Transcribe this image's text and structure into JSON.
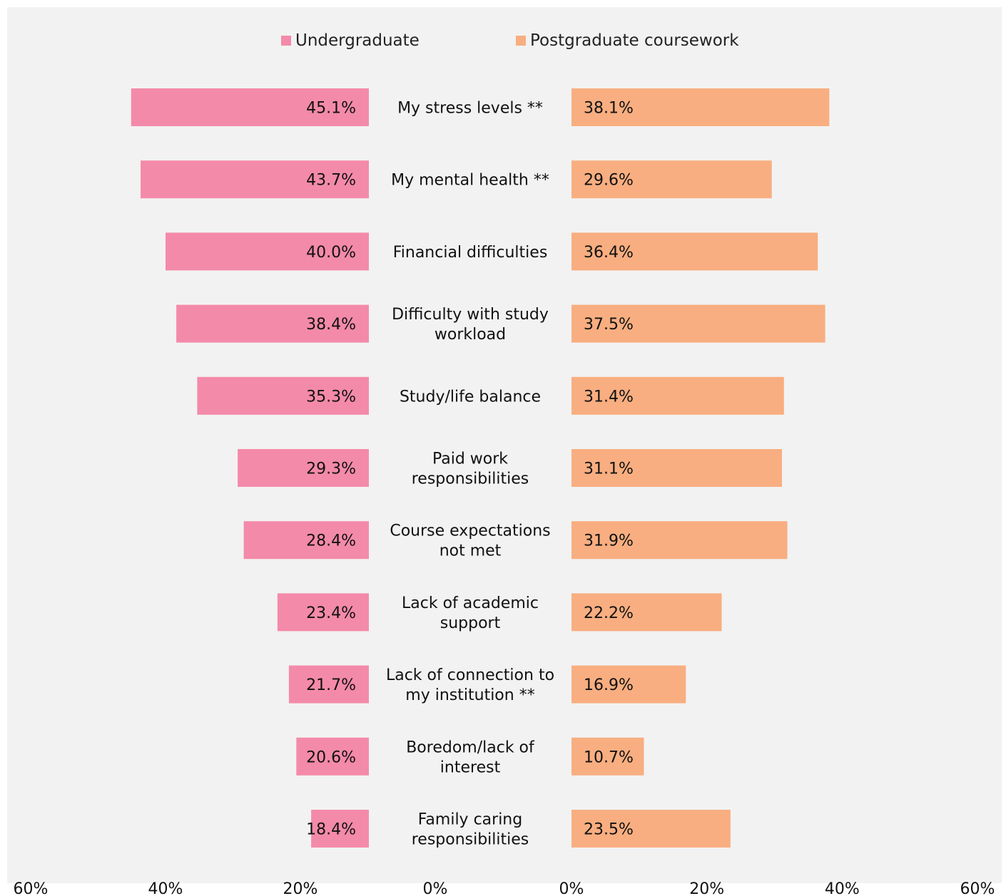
{
  "chart_data": {
    "type": "bar",
    "orientation": "horizontal",
    "layout": "butterfly",
    "categories": [
      "My stress levels **",
      "My mental health **",
      "Financial difficulties",
      "Difficulty with study workload",
      "Study/life balance",
      "Paid work responsibilities",
      "Course expectations not met",
      "Lack of academic support",
      "Lack of connection to my institution **",
      "Boredom/lack of interest",
      "Family caring responsibilities"
    ],
    "category_lines": [
      [
        "My stress levels **"
      ],
      [
        "My mental health **"
      ],
      [
        "Financial difficulties"
      ],
      [
        "Difficulty with study",
        "workload"
      ],
      [
        "Study/life balance"
      ],
      [
        "Paid work",
        "responsibilities"
      ],
      [
        "Course expectations",
        "not met"
      ],
      [
        "Lack of academic",
        "support"
      ],
      [
        "Lack of connection to",
        "my institution **"
      ],
      [
        "Boredom/lack of",
        "interest"
      ],
      [
        "Family caring",
        "responsibilities"
      ]
    ],
    "series": [
      {
        "name": "Undergraduate",
        "color": "#f48aaa",
        "side": "left",
        "values": [
          45.1,
          43.7,
          40.0,
          38.4,
          35.3,
          29.3,
          28.4,
          23.4,
          21.7,
          20.6,
          18.4
        ],
        "labels": [
          "45.1%",
          "43.7%",
          "40.0%",
          "38.4%",
          "35.3%",
          "29.3%",
          "28.4%",
          "23.4%",
          "21.7%",
          "20.6%",
          "18.4%"
        ]
      },
      {
        "name": "Postgraduate coursework",
        "color": "#f8ae80",
        "side": "right",
        "values": [
          38.1,
          29.6,
          36.4,
          37.5,
          31.4,
          31.1,
          31.9,
          22.2,
          16.9,
          10.7,
          23.5
        ],
        "labels": [
          "38.1%",
          "29.6%",
          "36.4%",
          "37.5%",
          "31.4%",
          "31.1%",
          "31.9%",
          "22.2%",
          "16.9%",
          "10.7%",
          "23.5%"
        ]
      }
    ],
    "xlim": [
      0,
      60
    ],
    "left_ticks": [
      "60%",
      "40%",
      "20%",
      "0%"
    ],
    "right_ticks": [
      "0%",
      "20%",
      "40%",
      "60%"
    ],
    "legend_position": "top",
    "grid": false
  }
}
